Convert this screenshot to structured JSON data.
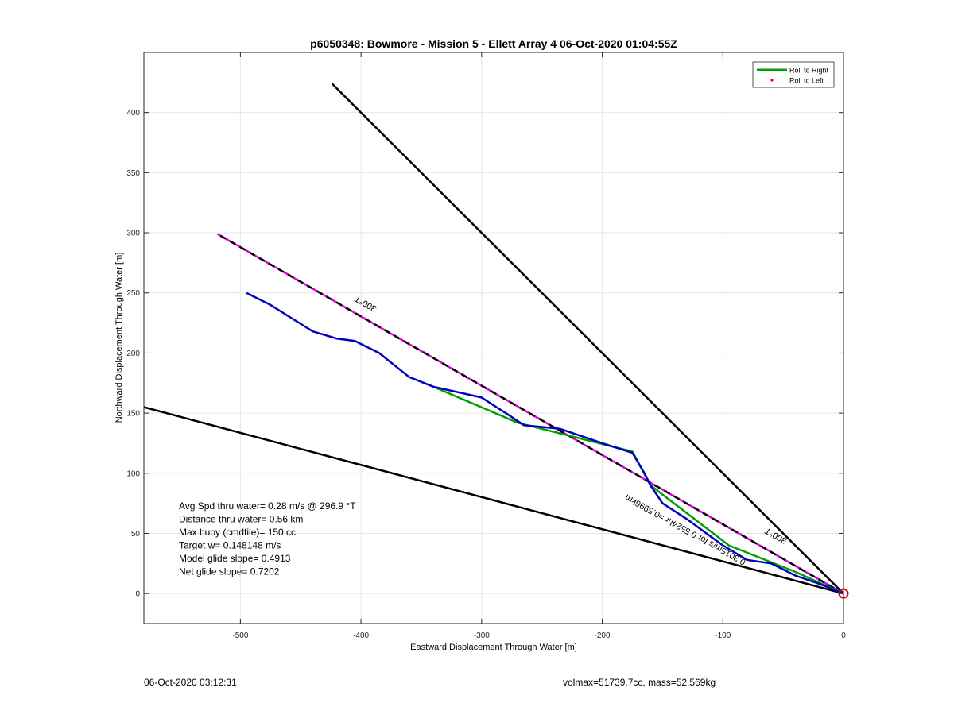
{
  "chart_data": {
    "type": "line",
    "title": "p6050348: Bowmore - Mission 5 - Ellett Array 4 06-Oct-2020 01:04:55Z",
    "xlabel": "Eastward Displacement Through Water [m]",
    "ylabel": "Northward Displacement Through Water [m]",
    "xlim": [
      -580,
      0
    ],
    "ylim": [
      -25,
      450
    ],
    "xticks": [
      -500,
      -400,
      -300,
      -200,
      -100,
      0
    ],
    "yticks": [
      0,
      50,
      100,
      150,
      200,
      250,
      300,
      350,
      400
    ],
    "grid": true,
    "legend": {
      "location": "top-right",
      "entries": [
        {
          "label": "Roll to Right",
          "color": "#00a000",
          "style": "line"
        },
        {
          "label": "Roll to Left",
          "color": "#ff0000",
          "style": "dot"
        }
      ]
    },
    "series": [
      {
        "color": "#000000",
        "style": "solid",
        "x": [
          0,
          -424
        ],
        "y": [
          0,
          424
        ]
      },
      {
        "color": "#000000",
        "style": "solid",
        "x": [
          0,
          -580
        ],
        "y": [
          0,
          155
        ]
      },
      {
        "color": "#e000e0",
        "style": "dashed-with-black",
        "x": [
          0,
          -519
        ],
        "y": [
          0,
          299
        ]
      },
      {
        "color": "#00a000",
        "style": "solid",
        "x": [
          0,
          -40,
          -95,
          -160,
          -175,
          -270,
          -340
        ],
        "y": [
          0,
          18,
          40,
          90,
          118,
          142,
          172
        ]
      },
      {
        "color": "#0000c0",
        "style": "solid",
        "x": [
          0,
          -20,
          -40,
          -60,
          -80,
          -100,
          -115,
          -130,
          -150,
          -160,
          -165,
          -175,
          -200,
          -235,
          -265,
          -280,
          -300,
          -340,
          -360,
          -385,
          -405,
          -420,
          -440,
          -475,
          -495
        ],
        "y": [
          0,
          8,
          15,
          25,
          28,
          40,
          51,
          62,
          75,
          90,
          100,
          117,
          125,
          137,
          140,
          150,
          163,
          172,
          180,
          200,
          210,
          212,
          218,
          240,
          250
        ]
      }
    ],
    "annotations": [
      {
        "text": "300°T",
        "x": -395,
        "y": 243,
        "rotation": 210
      },
      {
        "text": "300°T",
        "x": -55,
        "y": 50,
        "rotation": 210
      },
      {
        "text": "0.3015m/s for 0.5524hr =0.5996km",
        "x": -130,
        "y": 55,
        "rotation": 209
      }
    ],
    "stats": [
      "Avg Spd thru water=  0.28 m/s @ 296.9 °T",
      "Distance thru water=  0.56 km",
      "Max buoy (cmdfile)= 150 cc",
      "Target w= 0.148148 m/s",
      "Model glide slope= 0.4913",
      "Net glide slope= 0.7202"
    ],
    "marker": {
      "x": 0,
      "y": 0,
      "color": "#e00000",
      "shape": "circle"
    }
  },
  "footer": {
    "left": "06-Oct-2020 03:12:31",
    "right": "volmax=51739.7cc, mass=52.569kg"
  }
}
